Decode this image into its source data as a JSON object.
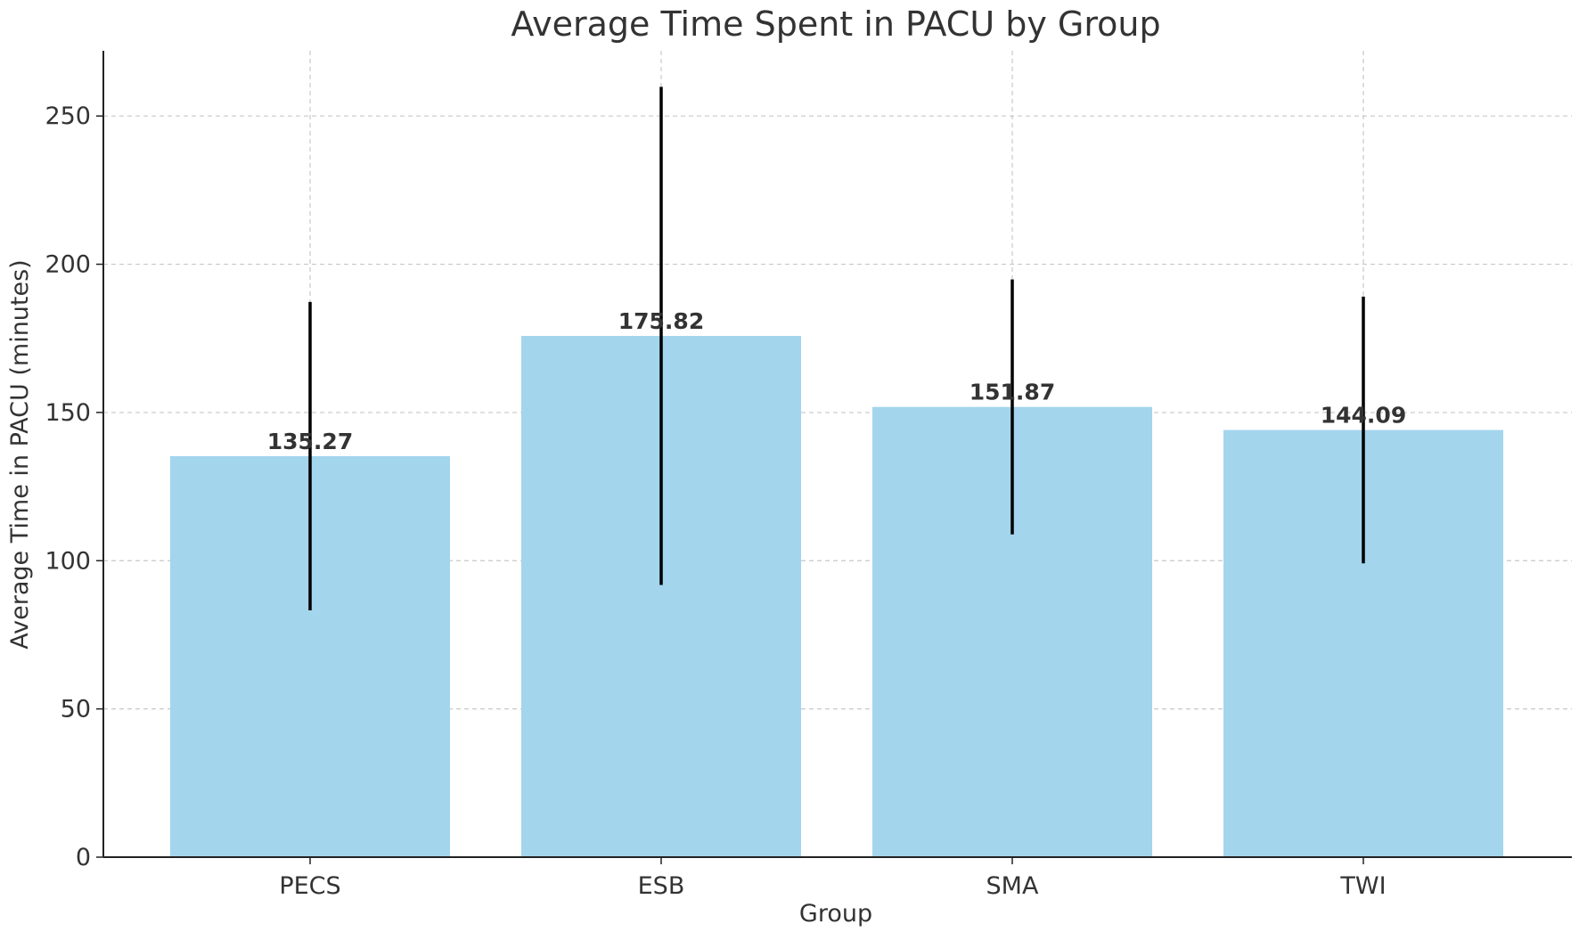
{
  "chart_data": {
    "type": "bar",
    "title": "Average Time Spent in PACU by Group",
    "xlabel": "Group",
    "ylabel": "Average Time in PACU (minutes)",
    "categories": [
      "PECS",
      "ESB",
      "SMA",
      "TWI"
    ],
    "values": [
      135.27,
      175.82,
      151.87,
      144.09
    ],
    "value_labels": [
      "135.27",
      "175.82",
      "151.87",
      "144.09"
    ],
    "error": [
      52,
      84,
      43,
      45
    ],
    "ylim": [
      0,
      272
    ],
    "yticks": [
      0,
      50,
      100,
      150,
      200,
      250
    ],
    "grid": true,
    "legend": "none",
    "colors": {
      "bar": "#a3d5ed",
      "error_bar": "#000000"
    }
  }
}
